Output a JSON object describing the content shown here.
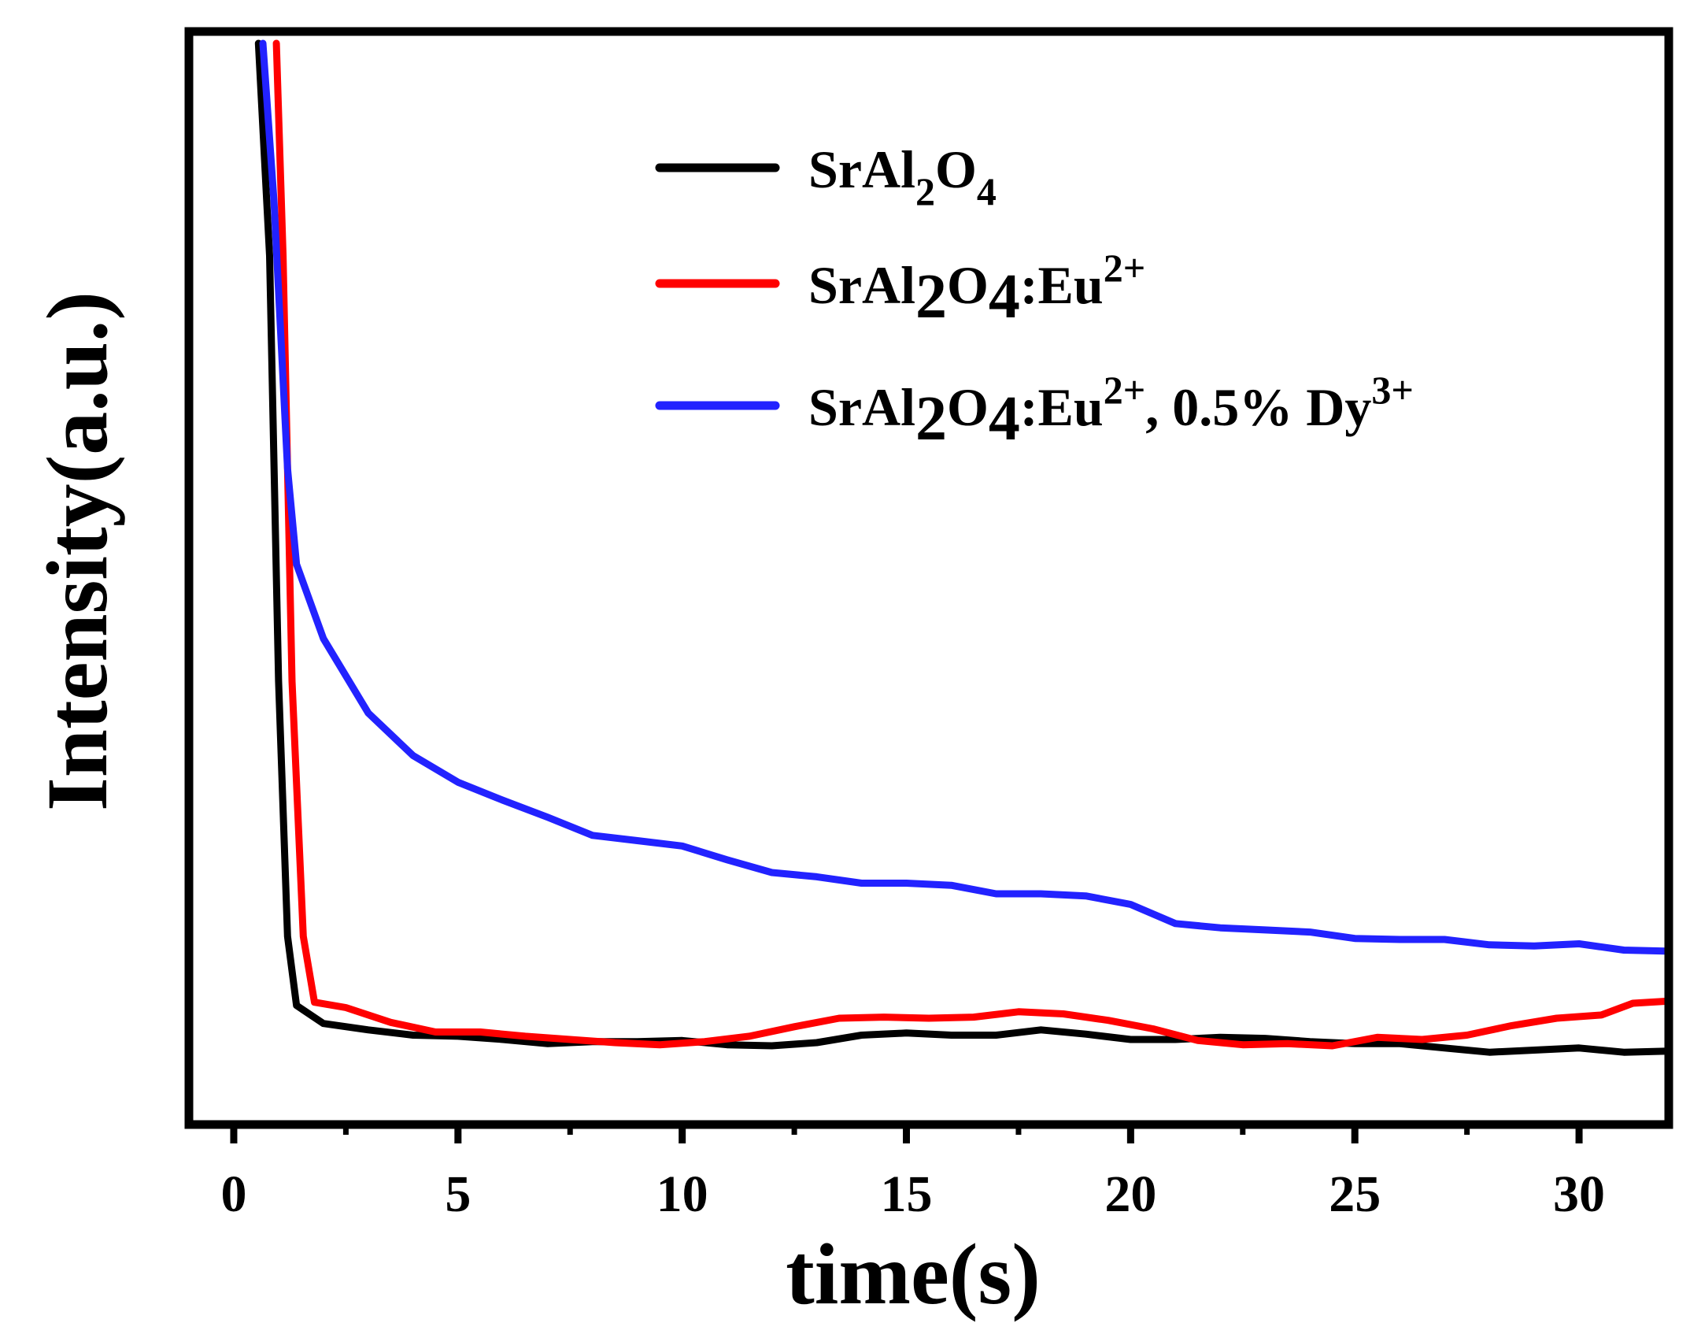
{
  "chart_data": {
    "type": "line",
    "xlabel": "time(s)",
    "ylabel": "Intensity(a.u.)",
    "xlim": [
      -1,
      32
    ],
    "ylim": [
      0,
      100
    ],
    "xticks": [
      "0",
      "5",
      "10",
      "15",
      "20",
      "25",
      "30"
    ],
    "xtick_values": [
      0,
      5,
      10,
      15,
      20,
      25,
      30
    ],
    "grid": false,
    "legend_position": "top-right",
    "series": [
      {
        "name": "SrAl2O4",
        "legend": {
          "base": "SrAl",
          "sub1": "2",
          "mid": "O",
          "sub2": "4",
          "tail": "",
          "sup1": "",
          "tail2": "",
          "sup2": ""
        },
        "color": "#000000",
        "points": [
          [
            0.55,
            100
          ],
          [
            0.8,
            80
          ],
          [
            1.0,
            40
          ],
          [
            1.2,
            16
          ],
          [
            1.4,
            9.5
          ],
          [
            2,
            7.8
          ],
          [
            3,
            7.2
          ],
          [
            4,
            6.7
          ],
          [
            5,
            6.6
          ],
          [
            6,
            6.3
          ],
          [
            7,
            5.9
          ],
          [
            8,
            6.1
          ],
          [
            9,
            6.1
          ],
          [
            10,
            6.2
          ],
          [
            11,
            5.8
          ],
          [
            12,
            5.7
          ],
          [
            13,
            6.0
          ],
          [
            14,
            6.7
          ],
          [
            15,
            6.9
          ],
          [
            16,
            6.7
          ],
          [
            17,
            6.7
          ],
          [
            18,
            7.2
          ],
          [
            19,
            6.8
          ],
          [
            20,
            6.3
          ],
          [
            21,
            6.3
          ],
          [
            22,
            6.5
          ],
          [
            23,
            6.4
          ],
          [
            24,
            6.1
          ],
          [
            25,
            5.9
          ],
          [
            26,
            5.9
          ],
          [
            27,
            5.5
          ],
          [
            28,
            5.1
          ],
          [
            29,
            5.3
          ],
          [
            30,
            5.5
          ],
          [
            31,
            5.1
          ],
          [
            32,
            5.2
          ]
        ]
      },
      {
        "name": "SrAl2O4:Eu2+",
        "legend": {
          "base": "SrAl",
          "sub1": "2",
          "mid": "O",
          "sub2": "4",
          "tail": ":Eu",
          "sup1": "2+",
          "tail2": "",
          "sup2": ""
        },
        "color": "#ff0000",
        "points": [
          [
            0.95,
            100
          ],
          [
            1.1,
            80
          ],
          [
            1.3,
            40
          ],
          [
            1.55,
            16
          ],
          [
            1.8,
            9.8
          ],
          [
            2.5,
            9.3
          ],
          [
            3.5,
            7.9
          ],
          [
            4.5,
            7.0
          ],
          [
            5.5,
            7.0
          ],
          [
            6.5,
            6.6
          ],
          [
            7.5,
            6.3
          ],
          [
            8.5,
            6.0
          ],
          [
            9.5,
            5.8
          ],
          [
            10.5,
            6.1
          ],
          [
            11.5,
            6.6
          ],
          [
            12.5,
            7.5
          ],
          [
            13.5,
            8.3
          ],
          [
            14.5,
            8.4
          ],
          [
            15.5,
            8.3
          ],
          [
            16.5,
            8.4
          ],
          [
            17.5,
            8.9
          ],
          [
            18.5,
            8.7
          ],
          [
            19.5,
            8.1
          ],
          [
            20.5,
            7.3
          ],
          [
            21.5,
            6.2
          ],
          [
            22.5,
            5.8
          ],
          [
            23.5,
            5.9
          ],
          [
            24.5,
            5.7
          ],
          [
            25.5,
            6.5
          ],
          [
            26.5,
            6.3
          ],
          [
            27.5,
            6.7
          ],
          [
            28.5,
            7.6
          ],
          [
            29.5,
            8.3
          ],
          [
            30.5,
            8.6
          ],
          [
            31.2,
            9.7
          ],
          [
            32,
            9.9
          ]
        ]
      },
      {
        "name": "SrAl2O4:Eu2+, 0.5% Dy3+",
        "legend": {
          "base": "SrAl",
          "sub1": "2",
          "mid": "O",
          "sub2": "4",
          "tail": ":Eu",
          "sup1": "2+",
          "tail2": ", 0.5% Dy",
          "sup2": "3+"
        },
        "color": "#2222ff",
        "points": [
          [
            0.65,
            100
          ],
          [
            0.9,
            85
          ],
          [
            1.2,
            60
          ],
          [
            1.4,
            51
          ],
          [
            2,
            44
          ],
          [
            3,
            37
          ],
          [
            4,
            33
          ],
          [
            5,
            30.5
          ],
          [
            6,
            28.8
          ],
          [
            7,
            27.2
          ],
          [
            8,
            25.5
          ],
          [
            9,
            25
          ],
          [
            10,
            24.5
          ],
          [
            11,
            23.2
          ],
          [
            12,
            22
          ],
          [
            13,
            21.6
          ],
          [
            14,
            21
          ],
          [
            15,
            21
          ],
          [
            16,
            20.8
          ],
          [
            17,
            20
          ],
          [
            18,
            20
          ],
          [
            19,
            19.8
          ],
          [
            20,
            19
          ],
          [
            21,
            17.2
          ],
          [
            22,
            16.8
          ],
          [
            23,
            16.6
          ],
          [
            24,
            16.4
          ],
          [
            25,
            15.8
          ],
          [
            26,
            15.7
          ],
          [
            27,
            15.7
          ],
          [
            28,
            15.2
          ],
          [
            29,
            15.1
          ],
          [
            30,
            15.3
          ],
          [
            31,
            14.7
          ],
          [
            32,
            14.6
          ]
        ]
      }
    ]
  }
}
